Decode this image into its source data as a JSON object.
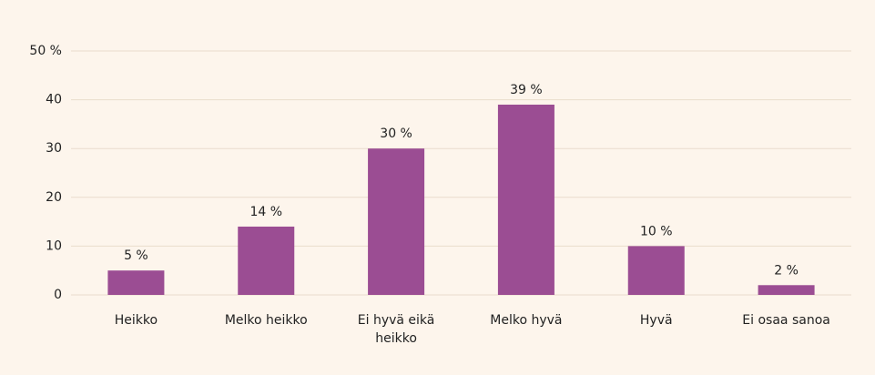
{
  "chart_data": {
    "type": "bar",
    "categories": [
      "Heikko",
      "Melko heikko",
      "Ei hyvä eikä heikko",
      "Melko hyvä",
      "Hyvä",
      "Ei osaa sanoa"
    ],
    "values": [
      5,
      14,
      30,
      39,
      10,
      2
    ],
    "value_labels": [
      "5 %",
      "14 %",
      "30 %",
      "39 %",
      "10 %",
      "2 %"
    ],
    "color": "#9b4d93",
    "ylim": [
      0,
      50
    ],
    "yticks": [
      0,
      10,
      20,
      30,
      40,
      {
        "value": 50,
        "label": "50 %"
      }
    ],
    "grid": true
  }
}
